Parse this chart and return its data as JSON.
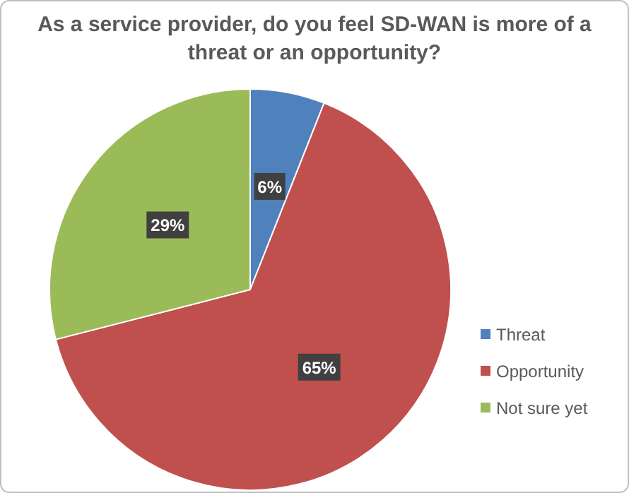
{
  "chart_data": {
    "type": "pie",
    "title": "As a service provider, do you feel SD-WAN is more of a threat or an opportunity?",
    "categories": [
      "Threat",
      "Opportunity",
      "Not sure yet"
    ],
    "values": [
      6,
      65,
      29
    ],
    "colors": [
      "#4f81bd",
      "#c0504d",
      "#9bbb59"
    ],
    "value_labels": [
      "6%",
      "65%",
      "29%"
    ],
    "legend": "right"
  }
}
